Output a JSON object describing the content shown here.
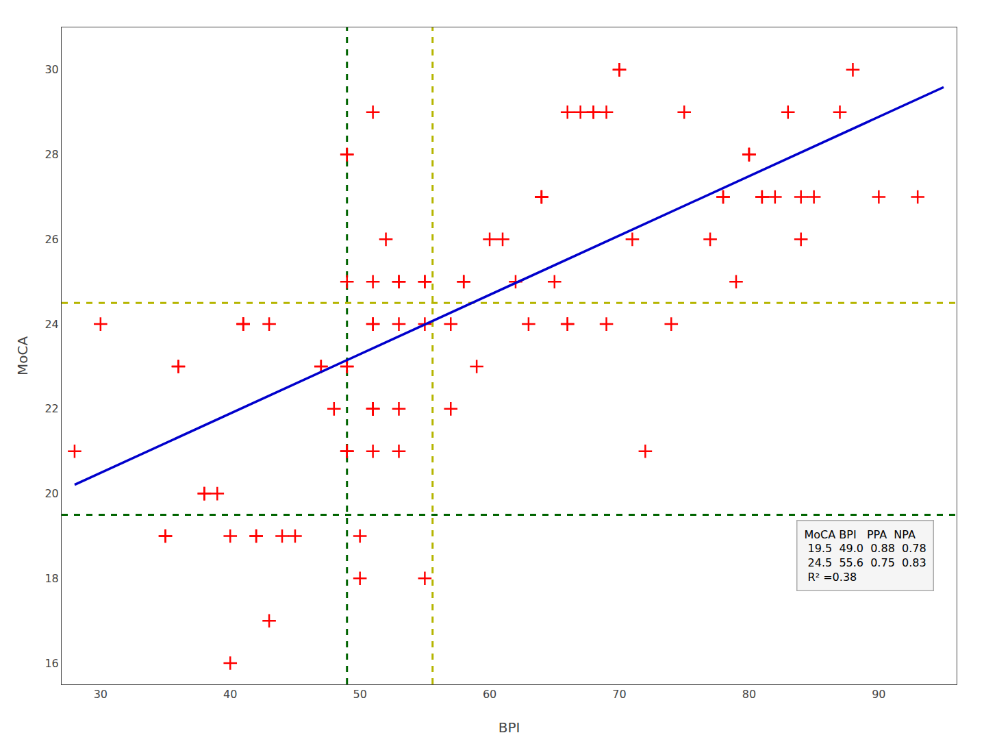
{
  "chart_data": {
    "type": "scatter",
    "xlabel": "BPI",
    "ylabel": "MoCA",
    "xlim": [
      27,
      96
    ],
    "ylim": [
      15.5,
      31
    ],
    "xticks": [
      30,
      40,
      50,
      60,
      70,
      80,
      90
    ],
    "yticks": [
      16,
      18,
      20,
      22,
      24,
      26,
      28,
      30
    ],
    "grid": false,
    "series": [
      {
        "type": "scatter",
        "color": "#ff0000",
        "marker": "+",
        "x": [
          28,
          30,
          35,
          35,
          36,
          36,
          38,
          38,
          39,
          40,
          40,
          41,
          41,
          41,
          42,
          42,
          43,
          43,
          44,
          45,
          47,
          47,
          48,
          49,
          49,
          49,
          49,
          49,
          49,
          49,
          49,
          50,
          50,
          51,
          51,
          51,
          51,
          51,
          51,
          51,
          51,
          52,
          53,
          53,
          53,
          53,
          53,
          55,
          55,
          55,
          55,
          57,
          57,
          58,
          58,
          59,
          60,
          61,
          62,
          63,
          64,
          64,
          64,
          65,
          66,
          66,
          66,
          67,
          68,
          68,
          69,
          69,
          70,
          70,
          71,
          72,
          74,
          75,
          77,
          78,
          78,
          79,
          80,
          80,
          80,
          81,
          81,
          82,
          83,
          84,
          84,
          85,
          87,
          88,
          90,
          93
        ],
        "values": [
          21,
          24,
          19,
          19,
          23,
          23,
          20,
          20,
          20,
          16,
          19,
          24,
          24,
          24,
          19,
          19,
          17,
          24,
          19,
          19,
          23,
          23,
          22,
          21,
          21,
          21,
          23,
          23,
          25,
          28,
          28,
          18,
          19,
          21,
          22,
          22,
          22,
          24,
          24,
          25,
          29,
          26,
          21,
          22,
          24,
          25,
          25,
          18,
          24,
          25,
          25,
          22,
          24,
          25,
          25,
          23,
          26,
          26,
          25,
          24,
          27,
          27,
          27,
          25,
          24,
          24,
          29,
          29,
          29,
          29,
          24,
          29,
          30,
          30,
          26,
          21,
          24,
          29,
          26,
          27,
          27,
          25,
          28,
          28,
          28,
          27,
          27,
          27,
          29,
          26,
          27,
          27,
          29,
          30,
          27,
          27
        ]
      },
      {
        "type": "line",
        "color": "#0000cc",
        "x": [
          28,
          95
        ],
        "values": [
          20.21,
          29.59
        ]
      }
    ],
    "reference_lines": [
      {
        "axis": "x",
        "value": 49.0,
        "color": "#006400",
        "line_style": "dashed"
      },
      {
        "axis": "x",
        "value": 55.6,
        "color": "#b5b500",
        "line_style": "dashed"
      },
      {
        "axis": "y",
        "value": 19.5,
        "color": "#006400",
        "line_style": "dashed"
      },
      {
        "axis": "y",
        "value": 24.5,
        "color": "#b5b500",
        "line_style": "dashed"
      }
    ],
    "annotations": [
      "MoCA BPI   PPA  NPA\n 19.5  49.0  0.88  0.78\n 24.5  55.6  0.75  0.83\n R² =0.38"
    ]
  }
}
